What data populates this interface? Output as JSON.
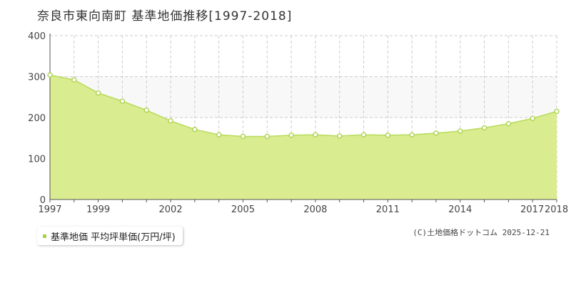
{
  "title": "奈良市東向南町 基準地価推移[1997-2018]",
  "legend": {
    "label": "基準地価 平均坪単価(万円/坪)"
  },
  "credit": "(C)土地価格ドットコム 2025-12-21",
  "colors": {
    "area_fill": "#d9ec8f",
    "line": "#b8dc5a",
    "point_fill": "#ffffff",
    "point_stroke": "#a9d046",
    "upper_bg": "#f8f8f8",
    "grid": "#cccccc",
    "axis": "#555555",
    "legend_swatch": "#a9d046"
  },
  "chart_data": {
    "type": "area",
    "title": "奈良市東向南町 基準地価推移[1997-2018]",
    "xlabel": "",
    "ylabel": "",
    "x": [
      1997,
      1998,
      1999,
      2000,
      2001,
      2002,
      2003,
      2004,
      2005,
      2006,
      2007,
      2008,
      2009,
      2010,
      2011,
      2012,
      2013,
      2014,
      2015,
      2016,
      2017,
      2018
    ],
    "series": [
      {
        "name": "基準地価 平均坪単価(万円/坪)",
        "values": [
          304,
          292,
          260,
          240,
          218,
          192,
          171,
          158,
          154,
          154,
          157,
          158,
          155,
          158,
          157,
          158,
          162,
          167,
          175,
          185,
          198,
          215
        ]
      }
    ],
    "xlim": [
      1997,
      2018
    ],
    "ylim": [
      0,
      400
    ],
    "yticks": [
      0,
      100,
      200,
      300,
      400
    ],
    "xtick_labels": [
      "1997",
      "1999",
      "2002",
      "2005",
      "2008",
      "2011",
      "2014",
      "2017",
      "2018"
    ],
    "grid": true,
    "legend_position": "bottom-left"
  }
}
